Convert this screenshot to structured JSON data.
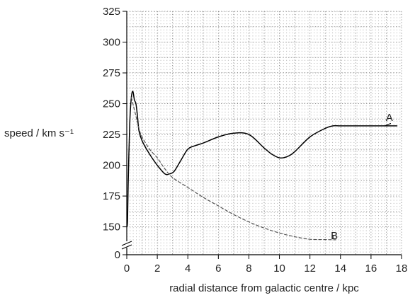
{
  "chart_data": {
    "type": "line",
    "xlabel": "radial distance from galactic centre / kpc",
    "ylabel": "speed / km s⁻¹",
    "xlim": [
      0,
      18
    ],
    "ylim": [
      0,
      325
    ],
    "x_ticks": [
      "0",
      "2",
      "4",
      "6",
      "8",
      "10",
      "12",
      "14",
      "16",
      "18"
    ],
    "y_ticks": [
      "0",
      "150",
      "175",
      "200",
      "225",
      "250",
      "275",
      "300",
      "325"
    ],
    "y_axis_break": "0 to 140",
    "grid": true,
    "series": [
      {
        "name": "A",
        "style": "solid",
        "color": "#000000",
        "x": [
          0,
          0.05,
          0.1,
          0.2,
          0.3,
          0.4,
          0.5,
          0.6,
          0.7,
          0.8,
          1.0,
          1.3,
          1.6,
          2.0,
          2.5,
          2.8,
          3.1,
          3.5,
          4.0,
          4.5,
          5.0,
          6.0,
          7.0,
          8.0,
          9.0,
          9.5,
          10.0,
          10.5,
          11.0,
          12.0,
          13.0,
          13.5,
          14.0,
          15.0,
          16.0,
          17.0,
          17.7
        ],
        "y": [
          150,
          155,
          190,
          235,
          255,
          260,
          253,
          250,
          240,
          228,
          220,
          213,
          207,
          200,
          193,
          193,
          195,
          203,
          213,
          216,
          218,
          223,
          226,
          225,
          214,
          209,
          206,
          207,
          211,
          223,
          230,
          232,
          232,
          232,
          232,
          232,
          232
        ]
      },
      {
        "name": "B",
        "style": "dashed",
        "color": "#555555",
        "x": [
          0.3,
          0.5,
          0.8,
          1.0,
          1.5,
          2.0,
          2.5,
          3.0,
          4.0,
          5.0,
          6.0,
          7.0,
          8.0,
          9.0,
          10.0,
          11.0,
          12.0,
          13.0,
          13.7
        ],
        "y": [
          255,
          245,
          230,
          223,
          213,
          206,
          197,
          190,
          182,
          174,
          167,
          160,
          154,
          149,
          145,
          142,
          139,
          136,
          134
        ]
      }
    ],
    "annotations": [
      "A",
      "B"
    ]
  }
}
